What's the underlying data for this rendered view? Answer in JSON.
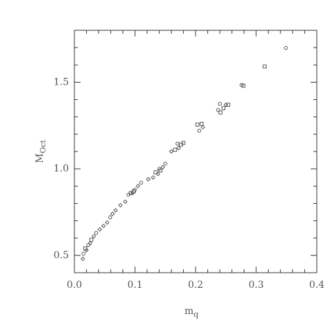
{
  "chart_data": {
    "type": "scatter",
    "x_label": "m",
    "x_label_sub": "q",
    "y_label": "M",
    "y_label_sub": "Oct",
    "xlim": [
      0,
      0.4
    ],
    "ylim": [
      0.4,
      1.8
    ],
    "xticks": [
      {
        "value": 0,
        "label": "0.0"
      },
      0.1,
      0.2,
      0.3,
      0.4
    ],
    "yticks": [
      0.5,
      {
        "value": 1,
        "label": "1.0"
      },
      1.5
    ],
    "xminorticks": [
      0.02,
      0.04,
      0.06,
      0.08,
      0.12,
      0.14,
      0.16,
      0.18,
      0.22,
      0.24,
      0.26,
      0.28,
      0.32,
      0.34,
      0.36,
      0.38
    ],
    "yminorticks": [
      0.6,
      0.7,
      0.8,
      0.9,
      1.1,
      1.2,
      1.3,
      1.4,
      1.6,
      1.7
    ],
    "series": [
      {
        "marker": "circle",
        "color": "#444",
        "x": [
          0.349,
          0.276,
          0.24,
          0.237,
          0.206,
          0.17,
          0.15,
          0.14,
          0.11,
          0.1,
          0.089,
          0.059,
          0.036,
          0.023,
          0.015
        ],
        "values": [
          1.698,
          1.485,
          1.375,
          1.34,
          1.22,
          1.145,
          1.03,
          1.0,
          0.92,
          0.88,
          0.85,
          0.72,
          0.63,
          0.56,
          0.51
        ]
      },
      {
        "marker": "square",
        "color": "#444",
        "x": [
          0.314,
          0.279,
          0.254,
          0.246,
          0.241,
          0.21,
          0.203,
          0.18,
          0.176,
          0.166,
          0.142,
          0.134,
          0.098,
          0.093,
          0.028,
          0.018
        ],
        "values": [
          1.591,
          1.48,
          1.37,
          1.35,
          1.325,
          1.26,
          1.255,
          1.15,
          1.14,
          1.11,
          0.99,
          0.98,
          0.87,
          0.86,
          0.59,
          0.54
        ]
      },
      {
        "marker": "diamond",
        "color": "#444",
        "x": [
          0.25,
          0.212,
          0.172,
          0.16,
          0.146,
          0.138,
          0.13,
          0.122,
          0.105,
          0.096,
          0.084,
          0.076,
          0.068,
          0.063,
          0.054,
          0.048,
          0.042,
          0.032,
          0.026,
          0.02,
          0.014
        ],
        "values": [
          1.37,
          1.24,
          1.12,
          1.1,
          1.01,
          0.97,
          0.95,
          0.94,
          0.9,
          0.86,
          0.81,
          0.79,
          0.76,
          0.74,
          0.69,
          0.67,
          0.65,
          0.61,
          0.57,
          0.53,
          0.48
        ]
      }
    ]
  }
}
